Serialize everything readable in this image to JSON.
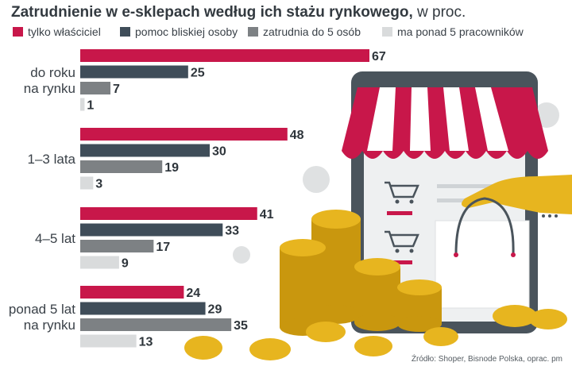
{
  "colors": {
    "s1": "#c8174a",
    "s2": "#3f4d59",
    "s3": "#7d8184",
    "s4": "#d9dbdc",
    "tablet": "#4a545c",
    "awning_red": "#c8174a",
    "coin": "#e7b51f",
    "coin_dark": "#c9970e",
    "hand": "#e7b51f",
    "grey_coin": "#dfe1e2"
  },
  "chart_data": {
    "type": "bar",
    "orientation": "horizontal",
    "title_bold": "Zatrudnienie w e-sklepach według ich stażu rynkowego,",
    "title_normal": " w proc.",
    "legend": [
      "tylko właściciel",
      "pomoc bliskiej osoby",
      "zatrudnia do 5 osób",
      "ma ponad 5 pracowników"
    ],
    "categories": [
      [
        "do roku",
        "na rynku"
      ],
      [
        "1–3 lata"
      ],
      [
        "4–5 lat"
      ],
      [
        "ponad 5 lat",
        "na rynku"
      ]
    ],
    "series": [
      {
        "name": "tylko właściciel",
        "values": [
          67,
          48,
          41,
          24
        ]
      },
      {
        "name": "pomoc bliskiej osoby",
        "values": [
          25,
          30,
          33,
          29
        ]
      },
      {
        "name": "zatrudnia do 5 osób",
        "values": [
          7,
          19,
          17,
          35
        ]
      },
      {
        "name": "ma ponad 5 pracowników",
        "values": [
          1,
          3,
          9,
          13
        ]
      }
    ],
    "xlim": [
      0,
      70
    ],
    "grid": false,
    "legend_position": "top",
    "source": "Źródło: Shoper, Bisnode Polska, oprac. pm"
  }
}
